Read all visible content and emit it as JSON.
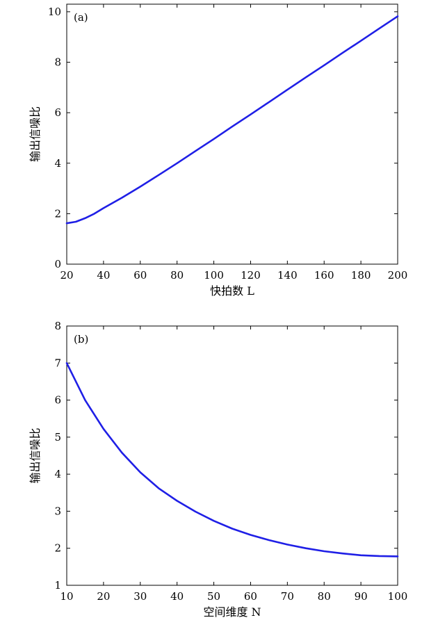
{
  "chart_data": [
    {
      "type": "line",
      "panel_label": "(a)",
      "xlabel": "快拍数 L",
      "ylabel": "输出信噪比",
      "xlim": [
        20,
        200
      ],
      "ylim": [
        0,
        10.3
      ],
      "xticks": [
        "20",
        "40",
        "60",
        "80",
        "100",
        "120",
        "140",
        "160",
        "180",
        "200"
      ],
      "yticks": [
        "0",
        "2",
        "4",
        "6",
        "8",
        "10"
      ],
      "grid": false,
      "color": "#1f1fe6",
      "series": [
        {
          "x": [
            20,
            25,
            30,
            35,
            40,
            50,
            60,
            70,
            80,
            90,
            100,
            110,
            120,
            130,
            140,
            150,
            160,
            170,
            180,
            190,
            200
          ],
          "y": [
            1.62,
            1.68,
            1.82,
            2.0,
            2.22,
            2.63,
            3.07,
            3.53,
            4.0,
            4.48,
            4.96,
            5.45,
            5.93,
            6.42,
            6.91,
            7.4,
            7.88,
            8.37,
            8.85,
            9.34,
            9.82
          ]
        }
      ]
    },
    {
      "type": "line",
      "panel_label": "(b)",
      "xlabel": "空间维度 N",
      "ylabel": "输出信噪比",
      "xlim": [
        10,
        100
      ],
      "ylim": [
        1,
        8
      ],
      "xticks": [
        "10",
        "20",
        "30",
        "40",
        "50",
        "60",
        "70",
        "80",
        "90",
        "100"
      ],
      "yticks": [
        "1",
        "2",
        "3",
        "4",
        "5",
        "6",
        "7",
        "8"
      ],
      "grid": false,
      "color": "#1f1fe6",
      "series": [
        {
          "x": [
            10,
            15,
            20,
            25,
            30,
            35,
            40,
            45,
            50,
            55,
            60,
            65,
            70,
            75,
            80,
            85,
            90,
            95,
            100
          ],
          "y": [
            7.0,
            6.0,
            5.22,
            4.58,
            4.05,
            3.62,
            3.28,
            2.99,
            2.74,
            2.53,
            2.36,
            2.22,
            2.1,
            2.0,
            1.92,
            1.86,
            1.81,
            1.79,
            1.78
          ]
        }
      ]
    }
  ]
}
